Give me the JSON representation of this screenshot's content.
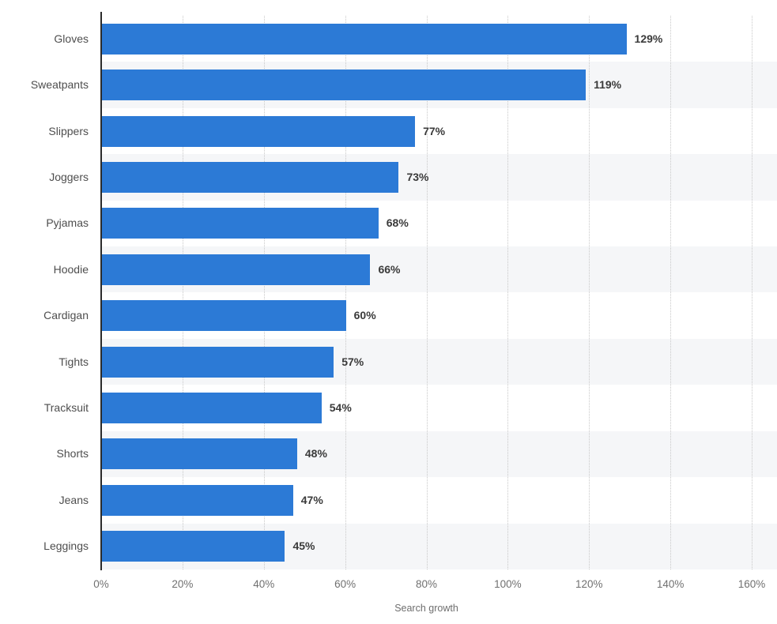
{
  "chart_data": {
    "type": "bar",
    "orientation": "horizontal",
    "categories": [
      "Gloves",
      "Sweatpants",
      "Slippers",
      "Joggers",
      "Pyjamas",
      "Hoodie",
      "Cardigan",
      "Tights",
      "Tracksuit",
      "Shorts",
      "Jeans",
      "Leggings"
    ],
    "values": [
      129,
      119,
      77,
      73,
      68,
      66,
      60,
      57,
      54,
      48,
      47,
      45
    ],
    "value_labels": [
      "129%",
      "119%",
      "77%",
      "73%",
      "68%",
      "66%",
      "60%",
      "57%",
      "54%",
      "48%",
      "47%",
      "45%"
    ],
    "title": "",
    "xlabel": "Search growth",
    "ylabel": "",
    "xlim": [
      0,
      160
    ],
    "x_ticks": [
      0,
      20,
      40,
      60,
      80,
      100,
      120,
      140,
      160
    ],
    "x_tick_labels": [
      "0%",
      "20%",
      "40%",
      "60%",
      "80%",
      "100%",
      "120%",
      "140%",
      "160%"
    ],
    "grid": "vertical-dotted",
    "legend": "none",
    "colors": {
      "bar": "#2c7ad6",
      "row_band": "#f5f6f8",
      "gridline": "#c8c8c8",
      "axis_line": "#2b2b2b",
      "category_label": "#4e4e4e",
      "value_label": "#3a3a3a",
      "tick_label": "#707070"
    }
  }
}
